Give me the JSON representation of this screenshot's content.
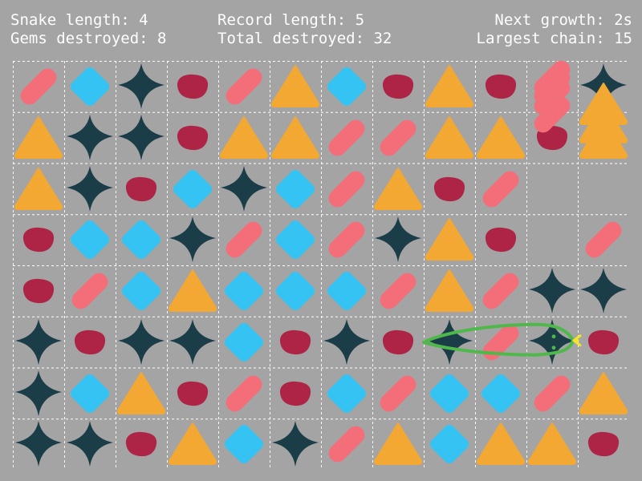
{
  "hud": {
    "snake_length": "Snake length: 4",
    "record_length": "Record length: 5",
    "next_growth": "Next growth: 2s",
    "gems_destroyed": "Gems destroyed: 8",
    "total_destroyed": "Total destroyed: 32",
    "largest_chain": "Largest chain: 15"
  },
  "colors": {
    "background": "#a4a4a4",
    "grid_line": "#ffffff",
    "pink_stick": "#f46e7a",
    "blue_diamond": "#34c3f2",
    "dark_star": "#1b3d47",
    "red_blob": "#ad2447",
    "orange_triangle": "#f2a833",
    "snake_outline": "#4fb84a",
    "snake_eye": "#4fb84a",
    "snake_tongue": "#f4e52c"
  },
  "gem_types": {
    "P": "pink-stick-gem",
    "B": "blue-diamond-gem",
    "S": "dark-star-gem",
    "R": "red-blob-gem",
    "T": "orange-triangle-gem"
  },
  "board": {
    "rows": [
      [
        "P",
        "B",
        "S",
        "R",
        "P",
        "T",
        "B",
        "R",
        "T",
        "R",
        "P",
        "S"
      ],
      [
        "T",
        "S",
        "S",
        "R",
        "T",
        "T",
        "P",
        "P",
        "T",
        "T",
        "R",
        "T"
      ],
      [
        "T",
        "S",
        "R",
        "B",
        "S",
        "B",
        "P",
        "T",
        "R",
        "P",
        "",
        ""
      ],
      [
        "R",
        "B",
        "B",
        "S",
        "P",
        "B",
        "P",
        "S",
        "T",
        "R",
        "",
        "P"
      ],
      [
        "R",
        "P",
        "B",
        "T",
        "B",
        "B",
        "B",
        "P",
        "T",
        "P",
        "S",
        "S"
      ],
      [
        "S",
        "R",
        "S",
        "S",
        "B",
        "R",
        "S",
        "R",
        "S",
        "P",
        "S",
        "R"
      ],
      [
        "S",
        "B",
        "T",
        "R",
        "P",
        "R",
        "B",
        "P",
        "B",
        "B",
        "P",
        "T"
      ],
      [
        "S",
        "S",
        "R",
        "T",
        "B",
        "S",
        "P",
        "T",
        "B",
        "T",
        "T",
        "R"
      ]
    ],
    "falling": [
      {
        "type": "P",
        "col": 10,
        "row": -0.15
      },
      {
        "type": "P",
        "col": 10,
        "row": 0.2
      },
      {
        "type": "P",
        "col": 10,
        "row": 0.55
      },
      {
        "type": "T",
        "col": 11,
        "row": 0.35
      },
      {
        "type": "T",
        "col": 11,
        "row": 0.7
      }
    ]
  },
  "snake": {
    "head_col": 10,
    "row": 5,
    "length": 4,
    "direction": "right"
  }
}
